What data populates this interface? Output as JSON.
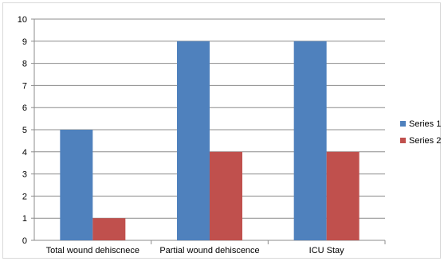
{
  "chart_data": {
    "type": "bar",
    "categories": [
      "Total wound dehiscnece",
      "Partial wound dehiscence",
      "ICU Stay"
    ],
    "series": [
      {
        "name": "Series 1",
        "values": [
          5,
          9,
          9
        ],
        "color": "#4f81bd"
      },
      {
        "name": "Series 2",
        "values": [
          1,
          4,
          4
        ],
        "color": "#c0504d"
      }
    ],
    "title": "",
    "xlabel": "",
    "ylabel": "",
    "ylim": [
      0,
      10
    ],
    "yticks": [
      "0",
      "1",
      "2",
      "3",
      "4",
      "5",
      "6",
      "7",
      "8",
      "9",
      "10"
    ],
    "grid": true,
    "legend_position": "right"
  }
}
